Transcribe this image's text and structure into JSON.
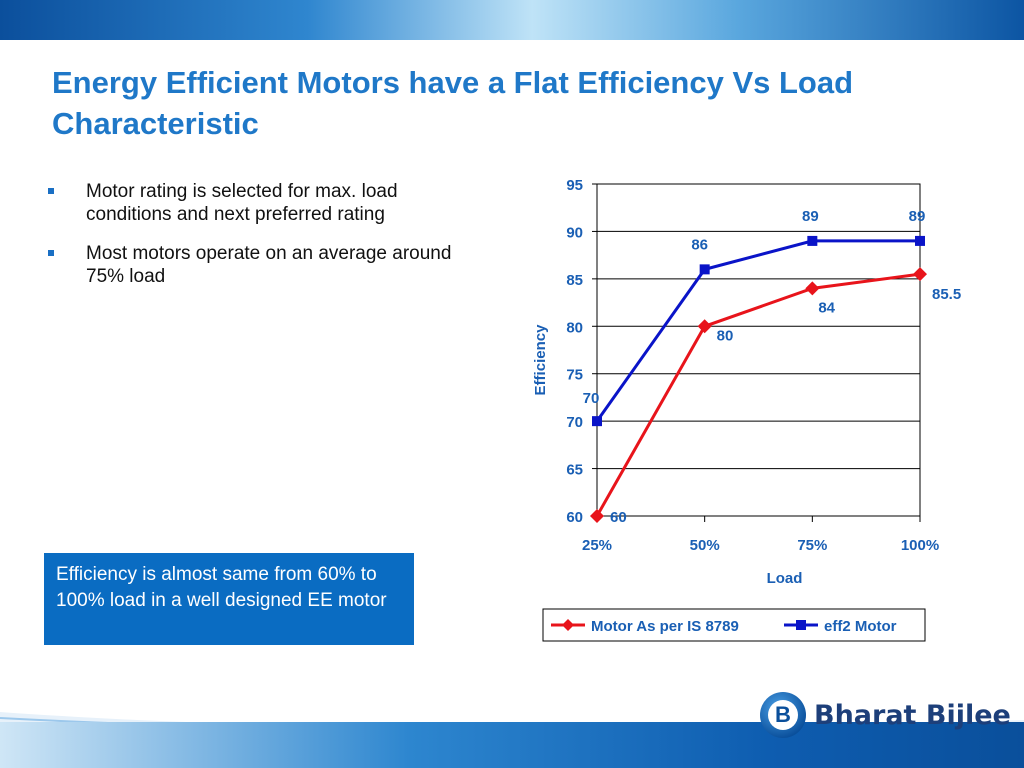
{
  "slide": {
    "title": "Energy Efficient Motors have a Flat Efficiency Vs Load Characteristic",
    "bullets": [
      "Motor rating is selected for max.  load conditions and next preferred rating",
      "Most motors operate on an average around  75%  load"
    ],
    "callout": "Efficiency is almost same from 60% to 100% load in a well designed EE motor",
    "logo_text": "Bharat Bijlee",
    "logo_letter": "B"
  },
  "chart_data": {
    "type": "line",
    "title": "",
    "xlabel": "Load",
    "ylabel": "Efficiency",
    "categories": [
      "25%",
      "50%",
      "75%",
      "100%"
    ],
    "ylim": [
      60,
      95
    ],
    "yticks": [
      60,
      65,
      70,
      75,
      80,
      85,
      90,
      95
    ],
    "grid": true,
    "legend_position": "bottom",
    "series": [
      {
        "name": "Motor As per IS 8789",
        "values": [
          60,
          80,
          84,
          85.5
        ],
        "labels": [
          "60",
          "80",
          "84",
          "85.5"
        ],
        "color": "#e8141b",
        "marker": "diamond"
      },
      {
        "name": "eff2 Motor",
        "values": [
          70,
          86,
          89,
          89
        ],
        "labels": [
          "70",
          "86",
          "89",
          "89"
        ],
        "color": "#0a14c8",
        "marker": "square"
      }
    ],
    "label_color": "#1a5fb4"
  }
}
